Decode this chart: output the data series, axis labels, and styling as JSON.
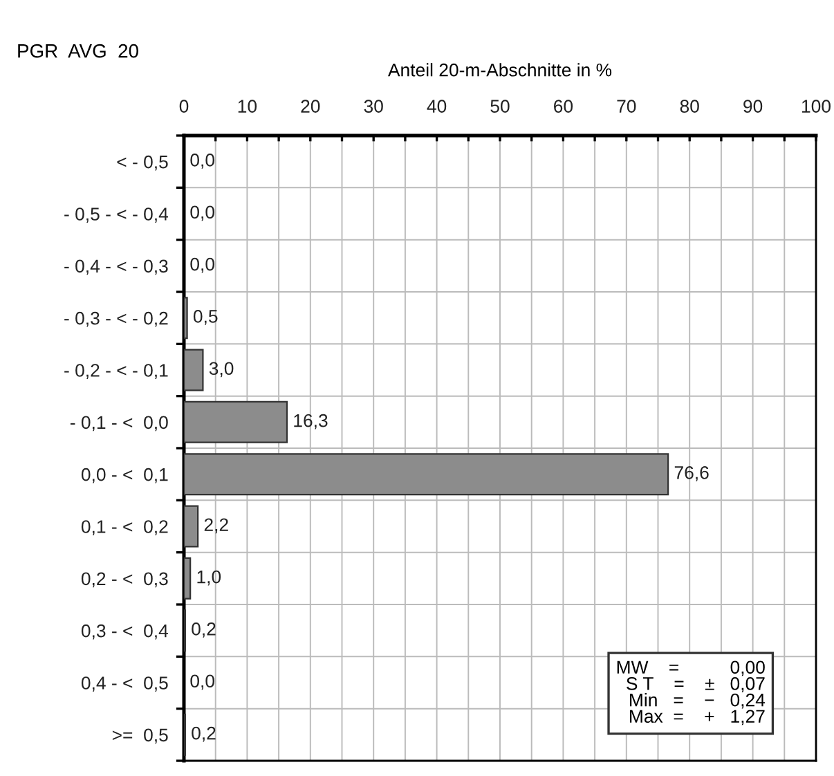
{
  "chart_data": {
    "type": "bar",
    "orientation": "horizontal",
    "title": "PGR  AVG  20",
    "xlabel": "Anteil 20-m-Abschnitte in %",
    "categories": [
      "< - 0,5",
      "- 0,5 - < - 0,4",
      "- 0,4 - < - 0,3",
      "- 0,3 - < - 0,2",
      "- 0,2 - < - 0,1",
      "- 0,1 - <  0,0",
      "0,0 - <  0,1",
      "0,1 - <  0,2",
      "0,2 - <  0,3",
      "0,3 - <  0,4",
      "0,4 - <  0,5",
      ">=  0,5"
    ],
    "values": [
      0.0,
      0.0,
      0.0,
      0.5,
      3.0,
      16.3,
      76.6,
      2.2,
      1.0,
      0.2,
      0.0,
      0.2
    ],
    "value_labels": [
      "0,0",
      "0,0",
      "0,0",
      "0,5",
      "3,0",
      "16,3",
      "76,6",
      "2,2",
      "1,0",
      "0,2",
      "0,0",
      "0,2"
    ],
    "color": "#8c8c8c",
    "xlim": [
      0,
      100
    ],
    "xticks": [
      0,
      {
        "value": 5,
        "label": null
      },
      10,
      {
        "value": 15,
        "label": null
      },
      20,
      {
        "value": 25,
        "label": null
      },
      30,
      {
        "value": 35,
        "label": null
      },
      40,
      {
        "value": 45,
        "label": null
      },
      50,
      {
        "value": 55,
        "label": null
      },
      60,
      {
        "value": 65,
        "label": null
      },
      70,
      {
        "value": 75,
        "label": null
      },
      80,
      {
        "value": 85,
        "label": null
      },
      90,
      {
        "value": 95,
        "label": null
      },
      100
    ],
    "grid": true,
    "annotations": [
      "MW    =          0,00",
      "S T    =    ±   0,07",
      "Min   =    −   0,24",
      "Max  =    +   1,27"
    ]
  }
}
